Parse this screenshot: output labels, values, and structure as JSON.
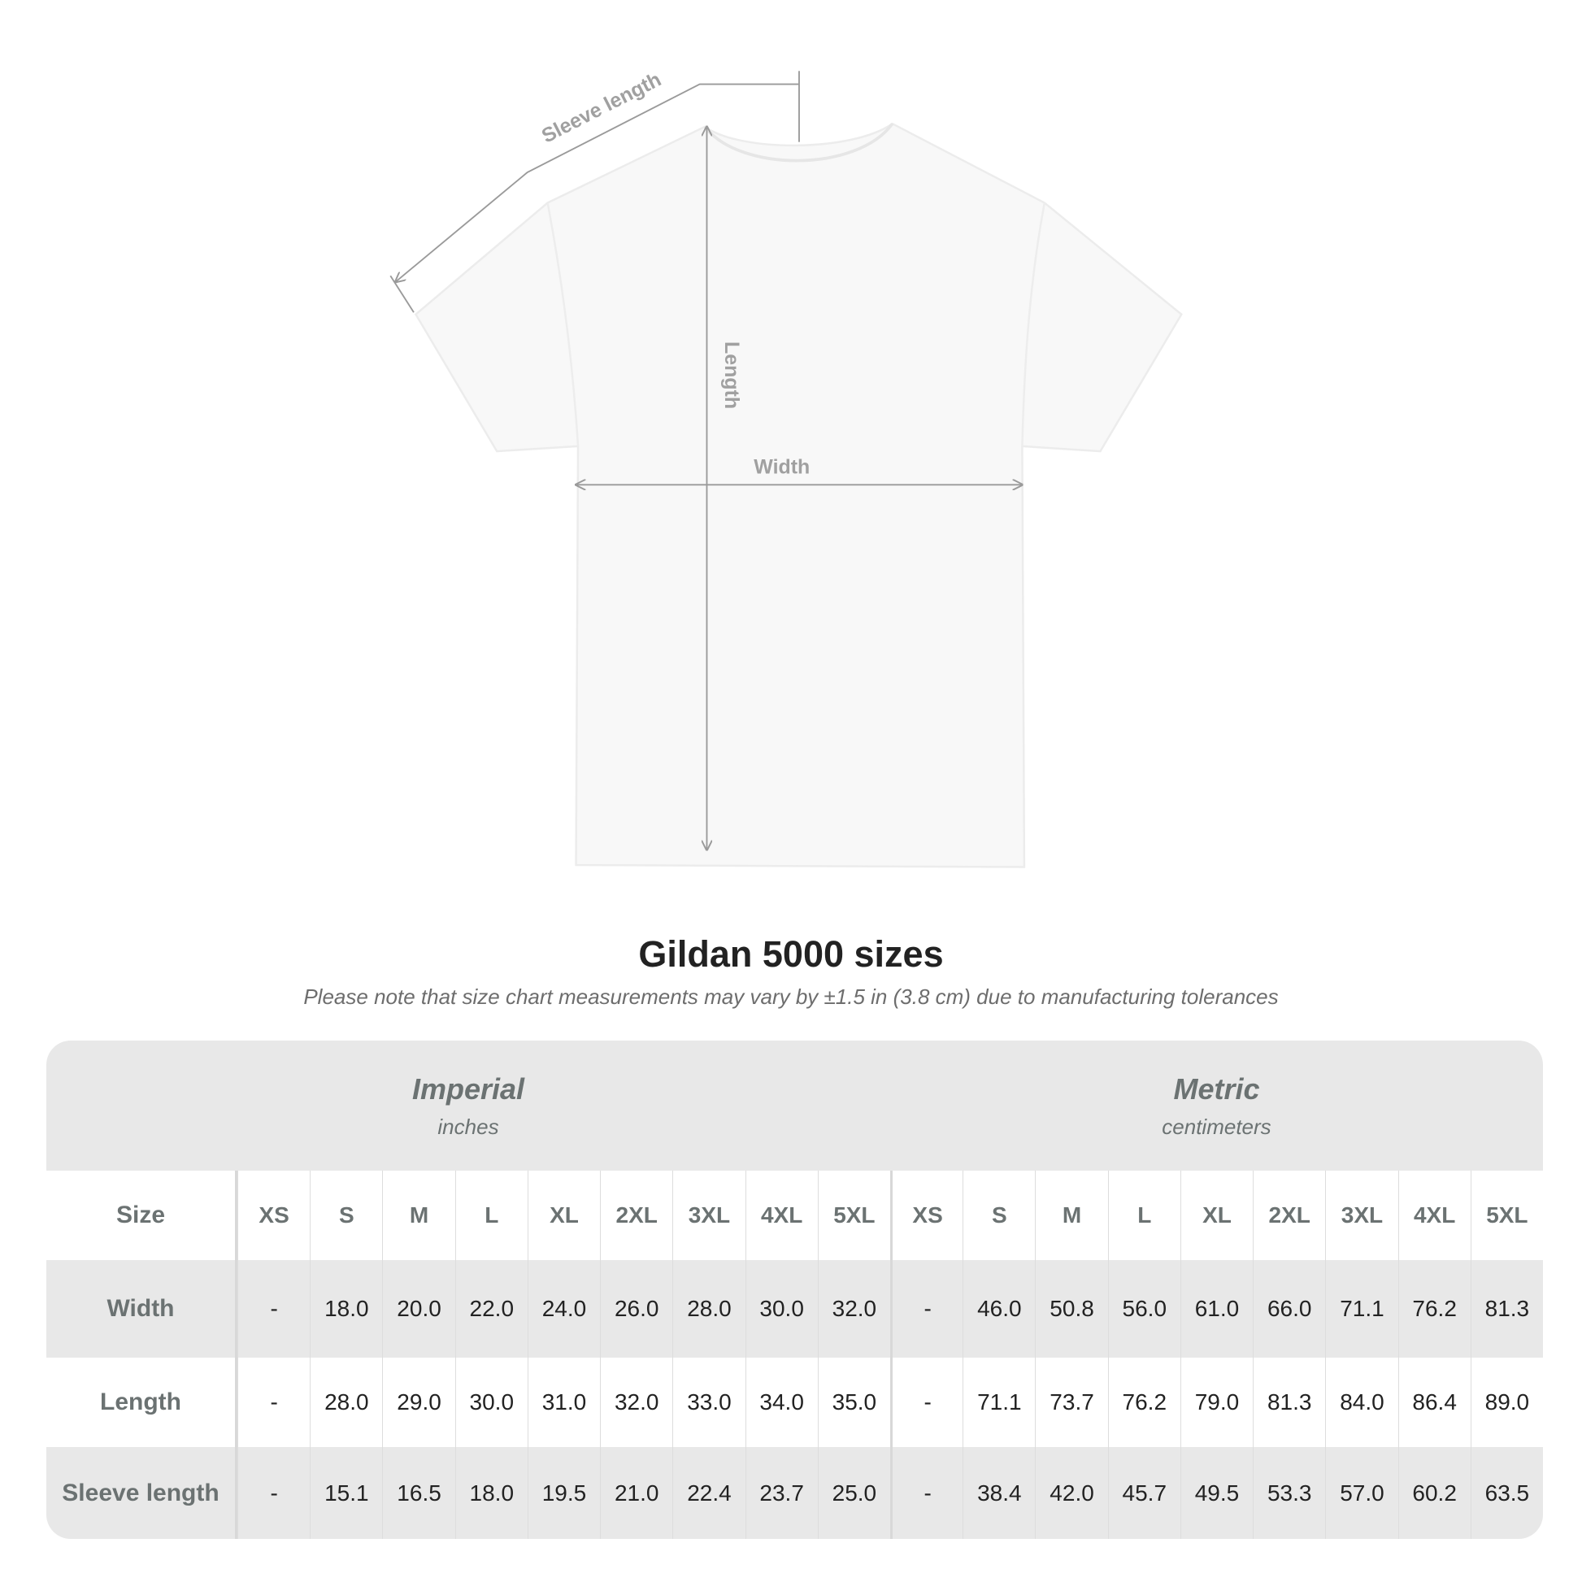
{
  "diagram": {
    "labels": {
      "sleeve": "Sleeve length",
      "length": "Length",
      "width": "Width"
    },
    "colors": {
      "shirt": "#f8f8f8",
      "measure_line": "#9a9a9a",
      "label": "#a0a0a0"
    }
  },
  "title": "Gildan 5000 sizes",
  "subtitle": "Please note that size chart measurements may vary by ±1.5 in (3.8 cm) due to manufacturing tolerances",
  "table": {
    "imperial": {
      "name": "Imperial",
      "unit": "inches"
    },
    "metric": {
      "name": "Metric",
      "unit": "centimeters"
    },
    "size_label": "Size",
    "sizes": [
      "XS",
      "S",
      "M",
      "L",
      "XL",
      "2XL",
      "3XL",
      "4XL",
      "5XL"
    ],
    "rows": [
      {
        "label": "Width",
        "imperial": [
          "-",
          "18.0",
          "20.0",
          "22.0",
          "24.0",
          "26.0",
          "28.0",
          "30.0",
          "32.0"
        ],
        "metric": [
          "-",
          "46.0",
          "50.8",
          "56.0",
          "61.0",
          "66.0",
          "71.1",
          "76.2",
          "81.3"
        ]
      },
      {
        "label": "Length",
        "imperial": [
          "-",
          "28.0",
          "29.0",
          "30.0",
          "31.0",
          "32.0",
          "33.0",
          "34.0",
          "35.0"
        ],
        "metric": [
          "-",
          "71.1",
          "73.7",
          "76.2",
          "79.0",
          "81.3",
          "84.0",
          "86.4",
          "89.0"
        ]
      },
      {
        "label": "Sleeve length",
        "imperial": [
          "-",
          "15.1",
          "16.5",
          "18.0",
          "19.5",
          "21.0",
          "22.4",
          "23.7",
          "25.0"
        ],
        "metric": [
          "-",
          "38.4",
          "42.0",
          "45.7",
          "49.5",
          "53.3",
          "57.0",
          "60.2",
          "63.5"
        ]
      }
    ],
    "colors": {
      "band": "#e8e8e8",
      "header_text": "#6b7272",
      "value_text": "#222222"
    }
  }
}
